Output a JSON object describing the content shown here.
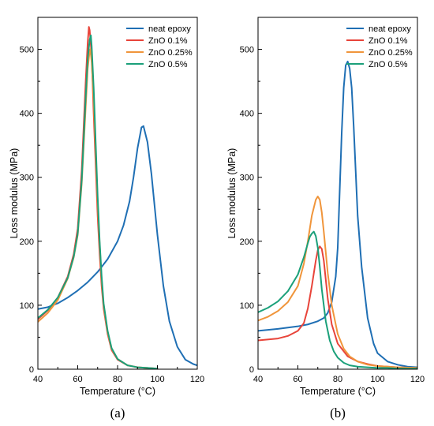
{
  "chart_data": [
    {
      "type": "line",
      "panel_label": "(a)",
      "xlabel": "Temperature (°C)",
      "ylabel": "Loss modulus (MPa)",
      "xlim": [
        40,
        120
      ],
      "ylim": [
        0,
        550
      ],
      "xticks": [
        40,
        60,
        80,
        100,
        120
      ],
      "yticks": [
        0,
        100,
        200,
        300,
        400,
        500
      ],
      "grid": false,
      "legend_position": "top-right",
      "series": [
        {
          "name": "neat epoxy",
          "color": "#1f6fb4",
          "x": [
            40,
            45,
            50,
            55,
            60,
            65,
            70,
            75,
            80,
            83,
            86,
            88,
            90,
            92,
            93,
            95,
            97,
            100,
            103,
            106,
            110,
            114,
            118,
            120
          ],
          "y": [
            94,
            97,
            103,
            112,
            123,
            136,
            152,
            172,
            200,
            225,
            262,
            300,
            345,
            378,
            380,
            355,
            305,
            210,
            130,
            75,
            35,
            15,
            8,
            6
          ]
        },
        {
          "name": "ZnO 0.1%",
          "color": "#e8443a",
          "x": [
            40,
            45,
            50,
            55,
            58,
            60,
            62,
            63,
            64,
            65,
            65.6,
            66,
            67,
            68,
            69,
            70,
            71,
            72,
            73,
            75,
            77,
            80,
            85,
            90,
            95,
            100
          ],
          "y": [
            78,
            92,
            112,
            145,
            180,
            220,
            310,
            380,
            450,
            510,
            535,
            530,
            490,
            400,
            320,
            240,
            180,
            130,
            95,
            55,
            30,
            15,
            6,
            3,
            2,
            1
          ]
        },
        {
          "name": "ZnO 0.25%",
          "color": "#f0953b",
          "x": [
            40,
            45,
            50,
            55,
            58,
            60,
            62,
            63,
            64,
            65,
            66,
            66.3,
            67,
            68,
            69,
            70,
            71,
            72,
            73,
            75,
            77,
            80,
            85,
            90,
            95,
            100
          ],
          "y": [
            74,
            88,
            108,
            142,
            175,
            210,
            290,
            350,
            410,
            470,
            498,
            500,
            480,
            420,
            340,
            260,
            195,
            140,
            100,
            58,
            32,
            16,
            6,
            3,
            2,
            1
          ]
        },
        {
          "name": "ZnO 0.5%",
          "color": "#1ba07a",
          "x": [
            40,
            45,
            50,
            55,
            58,
            60,
            62,
            63,
            64,
            65,
            66,
            66.6,
            67,
            68,
            69,
            70,
            71,
            72,
            73,
            75,
            77,
            80,
            85,
            90,
            95,
            100
          ],
          "y": [
            80,
            93,
            112,
            143,
            176,
            212,
            295,
            360,
            425,
            485,
            515,
            522,
            505,
            440,
            355,
            270,
            200,
            145,
            103,
            60,
            33,
            16,
            6,
            3,
            2,
            1
          ]
        }
      ]
    },
    {
      "type": "line",
      "panel_label": "(b)",
      "xlabel": "Temperature (°C)",
      "ylabel": "Loss modulus (MPa)",
      "xlim": [
        40,
        120
      ],
      "ylim": [
        0,
        550
      ],
      "xticks": [
        40,
        60,
        80,
        100,
        120
      ],
      "yticks": [
        0,
        100,
        200,
        300,
        400,
        500
      ],
      "grid": false,
      "legend_position": "top-right",
      "series": [
        {
          "name": "neat epoxy",
          "color": "#1f6fb4",
          "x": [
            40,
            50,
            60,
            65,
            70,
            73,
            75,
            77,
            79,
            80,
            81,
            82,
            83,
            84,
            85,
            86,
            87,
            88,
            89,
            90,
            92,
            95,
            98,
            100,
            105,
            110,
            115,
            120
          ],
          "y": [
            60,
            63,
            67,
            70,
            75,
            80,
            88,
            105,
            145,
            190,
            280,
            370,
            440,
            475,
            481,
            470,
            440,
            380,
            310,
            240,
            160,
            80,
            40,
            25,
            12,
            7,
            4,
            3
          ]
        },
        {
          "name": "ZnO 0.1%",
          "color": "#e8443a",
          "x": [
            40,
            50,
            55,
            60,
            63,
            65,
            67,
            69,
            70,
            71,
            72,
            73,
            74,
            75,
            77,
            80,
            85,
            90,
            95,
            100,
            105,
            110,
            120
          ],
          "y": [
            45,
            48,
            52,
            60,
            72,
            95,
            130,
            170,
            186,
            192,
            188,
            170,
            140,
            110,
            70,
            40,
            20,
            12,
            8,
            5,
            4,
            3,
            2
          ]
        },
        {
          "name": "ZnO 0.25%",
          "color": "#f0953b",
          "x": [
            40,
            45,
            50,
            55,
            60,
            63,
            65,
            67,
            69,
            70,
            71,
            72,
            73,
            75,
            77,
            80,
            83,
            86,
            90,
            95,
            100,
            105,
            110,
            120
          ],
          "y": [
            76,
            82,
            91,
            105,
            130,
            165,
            200,
            240,
            265,
            270,
            265,
            245,
            215,
            150,
            100,
            55,
            32,
            20,
            12,
            7,
            5,
            4,
            3,
            2
          ]
        },
        {
          "name": "ZnO 0.5%",
          "color": "#1ba07a",
          "x": [
            40,
            45,
            50,
            55,
            60,
            63,
            65,
            66,
            67,
            68,
            69,
            70,
            71,
            72,
            74,
            76,
            78,
            80,
            83,
            86,
            90,
            95,
            100,
            105,
            110,
            120
          ],
          "y": [
            89,
            96,
            106,
            122,
            148,
            175,
            197,
            207,
            212,
            215,
            208,
            190,
            160,
            125,
            75,
            45,
            28,
            18,
            10,
            6,
            4,
            3,
            2,
            2,
            1,
            1
          ]
        }
      ]
    }
  ]
}
